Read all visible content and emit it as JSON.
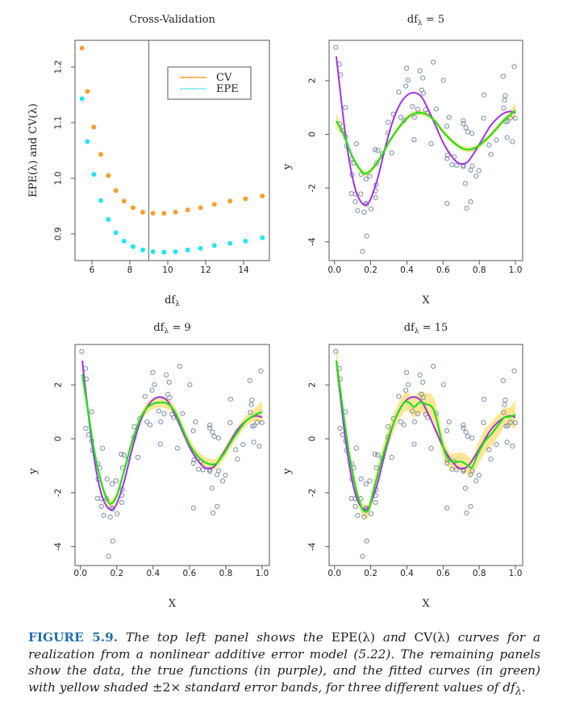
{
  "chart_data": [
    {
      "type": "scatter",
      "title": "Cross-Validation",
      "xlabel": "df_λ",
      "ylabel": "EPE(λ) and CV(λ)",
      "xlim": [
        5.11,
        15.36
      ],
      "ylim": [
        0.852,
        1.248
      ],
      "xticks": [
        6,
        8,
        10,
        12,
        14
      ],
      "yticks": [
        0.9,
        1.0,
        1.1,
        1.2
      ],
      "ytick_labels": [
        "0.9",
        "1.0",
        "1.1",
        "1.2"
      ],
      "vline": 9,
      "legend": {
        "placement": "top-right",
        "entries": [
          "CV",
          "EPE"
        ]
      },
      "x": [
        5.48,
        5.76,
        6.1,
        6.47,
        6.87,
        7.26,
        7.7,
        8.17,
        8.68,
        9.22,
        9.8,
        10.41,
        11.05,
        11.73,
        12.46,
        13.28,
        14.1,
        14.99
      ],
      "series": [
        {
          "name": "CV",
          "color": "#f5a030",
          "values": [
            1.234,
            1.156,
            1.092,
            1.043,
            1.005,
            0.978,
            0.959,
            0.947,
            0.939,
            0.937,
            0.937,
            0.939,
            0.943,
            0.947,
            0.953,
            0.959,
            0.963,
            0.968
          ]
        },
        {
          "name": "EPE",
          "color": "#22e5ef",
          "values": [
            1.143,
            1.066,
            1.007,
            0.96,
            0.926,
            0.902,
            0.887,
            0.877,
            0.871,
            0.868,
            0.867,
            0.868,
            0.871,
            0.874,
            0.879,
            0.883,
            0.887,
            0.893
          ]
        }
      ]
    },
    {
      "type": "scatter",
      "title_prefix": "df",
      "title_sub": "λ",
      "title_value": "= 5",
      "xlabel": "X",
      "ylabel": "y",
      "xlim": [
        -0.03,
        1.04
      ],
      "ylim": [
        -4.7,
        3.5
      ],
      "xticks": [
        0.0,
        0.2,
        0.4,
        0.6,
        0.8,
        1.0
      ],
      "xtick_labels": [
        "0.0",
        "0.2",
        "0.4",
        "0.6",
        "0.8",
        "1.0"
      ],
      "yticks": [
        -4,
        -2,
        0,
        2
      ],
      "ytick_labels": [
        "-4",
        "-2",
        "0",
        "2"
      ],
      "fit": {
        "x": [
          0.01,
          0.05,
          0.1,
          0.15,
          0.18,
          0.22,
          0.26,
          0.3,
          0.35,
          0.4,
          0.44,
          0.48,
          0.52,
          0.56,
          0.6,
          0.65,
          0.7,
          0.74,
          0.78,
          0.82,
          0.86,
          0.9,
          0.94,
          0.97,
          1.0
        ],
        "y": [
          0.5,
          0.0,
          -0.85,
          -1.38,
          -1.45,
          -1.2,
          -0.8,
          -0.3,
          0.2,
          0.6,
          0.77,
          0.8,
          0.7,
          0.45,
          0.1,
          -0.25,
          -0.5,
          -0.57,
          -0.5,
          -0.3,
          -0.05,
          0.25,
          0.55,
          0.72,
          0.9
        ]
      },
      "band_halfwidth": [
        0.3,
        0.12,
        0.1,
        0.1,
        0.1,
        0.1,
        0.1,
        0.1,
        0.1,
        0.1,
        0.1,
        0.1,
        0.1,
        0.1,
        0.1,
        0.1,
        0.1,
        0.1,
        0.1,
        0.1,
        0.1,
        0.1,
        0.12,
        0.16,
        0.3
      ]
    },
    {
      "type": "scatter",
      "title_prefix": "df",
      "title_sub": "λ",
      "title_value": "= 9",
      "xlabel": "X",
      "ylabel": "y",
      "xlim": [
        -0.03,
        1.04
      ],
      "ylim": [
        -4.7,
        3.5
      ],
      "xticks": [
        0.0,
        0.2,
        0.4,
        0.6,
        0.8,
        1.0
      ],
      "xtick_labels": [
        "0.0",
        "0.2",
        "0.4",
        "0.6",
        "0.8",
        "1.0"
      ],
      "yticks": [
        -4,
        -2,
        0,
        2
      ],
      "ytick_labels": [
        "-4",
        "-2",
        "0",
        "2"
      ],
      "fit": {
        "x": [
          0.01,
          0.04,
          0.08,
          0.12,
          0.15,
          0.17,
          0.2,
          0.24,
          0.28,
          0.32,
          0.36,
          0.4,
          0.44,
          0.48,
          0.52,
          0.56,
          0.6,
          0.64,
          0.68,
          0.72,
          0.75,
          0.79,
          0.83,
          0.87,
          0.91,
          0.95,
          1.0
        ],
        "y": [
          2.4,
          1.1,
          -0.6,
          -1.75,
          -2.3,
          -2.4,
          -2.1,
          -1.2,
          -0.2,
          0.6,
          1.1,
          1.3,
          1.35,
          1.3,
          1.0,
          0.4,
          -0.2,
          -0.6,
          -0.85,
          -0.95,
          -0.9,
          -0.55,
          -0.1,
          0.3,
          0.65,
          0.85,
          1.0
        ]
      },
      "band_halfwidth": [
        0.35,
        0.2,
        0.15,
        0.15,
        0.15,
        0.15,
        0.15,
        0.15,
        0.15,
        0.15,
        0.2,
        0.2,
        0.2,
        0.2,
        0.2,
        0.2,
        0.2,
        0.2,
        0.2,
        0.2,
        0.2,
        0.2,
        0.2,
        0.2,
        0.2,
        0.22,
        0.4
      ]
    },
    {
      "type": "scatter",
      "title_prefix": "df",
      "title_sub": "λ",
      "title_value": "= 15",
      "xlabel": "X",
      "ylabel": "y",
      "xlim": [
        -0.03,
        1.04
      ],
      "ylim": [
        -4.7,
        3.5
      ],
      "xticks": [
        0.0,
        0.2,
        0.4,
        0.6,
        0.8,
        1.0
      ],
      "xtick_labels": [
        "0.0",
        "0.2",
        "0.4",
        "0.6",
        "0.8",
        "1.0"
      ],
      "yticks": [
        -4,
        -2,
        0,
        2
      ],
      "ytick_labels": [
        "-4",
        "-2",
        "0",
        "2"
      ],
      "fit": {
        "x": [
          0.01,
          0.04,
          0.08,
          0.12,
          0.15,
          0.17,
          0.19,
          0.22,
          0.26,
          0.3,
          0.34,
          0.38,
          0.4,
          0.42,
          0.44,
          0.47,
          0.5,
          0.55,
          0.6,
          0.63,
          0.66,
          0.7,
          0.73,
          0.76,
          0.79,
          0.83,
          0.87,
          0.91,
          0.94,
          0.97,
          1.0
        ],
        "y": [
          2.9,
          1.4,
          -0.5,
          -1.9,
          -2.55,
          -2.7,
          -2.6,
          -1.8,
          -0.8,
          0.1,
          0.8,
          1.3,
          1.38,
          1.3,
          1.18,
          1.35,
          1.3,
          1.05,
          -0.3,
          -0.75,
          -0.85,
          -0.85,
          -0.95,
          -1.05,
          -0.6,
          -0.1,
          0.2,
          0.55,
          0.8,
          0.82,
          0.9
        ]
      },
      "band_halfwidth": [
        0.6,
        0.3,
        0.25,
        0.25,
        0.25,
        0.25,
        0.25,
        0.3,
        0.35,
        0.35,
        0.35,
        0.35,
        0.35,
        0.35,
        0.4,
        0.4,
        0.4,
        0.45,
        0.4,
        0.3,
        0.3,
        0.35,
        0.35,
        0.35,
        0.4,
        0.45,
        0.45,
        0.4,
        0.35,
        0.35,
        0.55
      ]
    }
  ],
  "true_function": {
    "color": "#a033e6",
    "x": [
      0.01,
      0.03,
      0.06,
      0.09,
      0.12,
      0.15,
      0.175,
      0.2,
      0.24,
      0.28,
      0.32,
      0.36,
      0.4,
      0.44,
      0.48,
      0.52,
      0.56,
      0.6,
      0.64,
      0.68,
      0.71,
      0.74,
      0.78,
      0.82,
      0.86,
      0.9,
      0.94,
      0.97,
      1.0
    ],
    "y": [
      2.9,
      1.7,
      0.0,
      -1.3,
      -2.15,
      -2.55,
      -2.62,
      -2.4,
      -1.6,
      -0.5,
      0.45,
      1.1,
      1.45,
      1.55,
      1.4,
      0.9,
      0.3,
      -0.3,
      -0.75,
      -1.05,
      -1.1,
      -1.0,
      -0.6,
      -0.15,
      0.3,
      0.6,
      0.8,
      0.85,
      0.8
    ]
  },
  "scatter_points": {
    "color": "#7b8ca1",
    "x": [
      0.007,
      0.027,
      0.032,
      0.061,
      0.03,
      0.044,
      0.062,
      0.066,
      0.121,
      0.096,
      0.106,
      0.097,
      0.147,
      0.094,
      0.115,
      0.145,
      0.115,
      0.128,
      0.164,
      0.174,
      0.195,
      0.173,
      0.177,
      0.202,
      0.178,
      0.155,
      0.224,
      0.239,
      0.232,
      0.264,
      0.23,
      0.227,
      0.227,
      0.295,
      0.296,
      0.316,
      0.326,
      0.355,
      0.366,
      0.383,
      0.394,
      0.398,
      0.407,
      0.431,
      0.44,
      0.442,
      0.46,
      0.472,
      0.488,
      0.481,
      0.491,
      0.504,
      0.513,
      0.534,
      0.546,
      0.562,
      0.602,
      0.621,
      0.625,
      0.622,
      0.622,
      0.633,
      0.65,
      0.674,
      0.662,
      0.712,
      0.712,
      0.712,
      0.726,
      0.736,
      0.76,
      0.712,
      0.761,
      0.752,
      0.723,
      0.73,
      0.752,
      0.783,
      0.798,
      0.824,
      0.827,
      0.854,
      0.864,
      0.895,
      0.932,
      0.935,
      0.94,
      0.944,
      0.948,
      0.957,
      0.954,
      0.972,
      0.984,
      0.993,
      0.999
    ],
    "y": [
      3.24,
      2.61,
      2.22,
      1.0,
      0.39,
      0.15,
      -0.08,
      -0.43,
      -0.35,
      -0.92,
      -1.07,
      -1.5,
      -1.49,
      -2.21,
      -2.22,
      -2.22,
      -2.51,
      -2.84,
      -2.9,
      -1.67,
      -1.56,
      -2.57,
      -2.61,
      -2.78,
      -3.79,
      -4.36,
      -0.57,
      -0.6,
      -1.07,
      -0.72,
      -1.88,
      -2.1,
      -2.36,
      0.06,
      0.45,
      -0.69,
      0.75,
      1.57,
      0.63,
      0.52,
      1.8,
      2.46,
      2.01,
      1.03,
      -0.2,
      0.63,
      0.93,
      2.37,
      2.1,
      1.65,
      1.53,
      0.91,
      0.79,
      -0.35,
      2.69,
      0.94,
      2.01,
      0.3,
      -0.78,
      -0.9,
      -2.57,
      0.63,
      -1.13,
      -1.15,
      -0.84,
      0.51,
      0.4,
      -1.15,
      0.25,
      0.09,
      0.03,
      -1.2,
      -1.18,
      -1.33,
      -1.83,
      -2.75,
      -2.51,
      -1.56,
      -1.35,
      0.6,
      1.47,
      -0.4,
      -0.75,
      -0.21,
      2.16,
      0.98,
      1.27,
      1.44,
      0.47,
      0.49,
      -0.12,
      0.61,
      -0.27,
      2.52,
      0.6
    ]
  },
  "colors": {
    "fit": "#1fe01f",
    "band": "#ffe38a",
    "axis": "#555555",
    "vline": "#777777"
  },
  "caption": {
    "label": "FIGURE 5.9.",
    "text_1": " The top left panel shows the ",
    "epe": "EPE(λ)",
    "and": " and ",
    "cv": "CV(λ)",
    "text_2": " curves for a realization from a nonlinear additive error model (5.22). The remaining panels show the data, the true functions (in purple), and the fitted curves (in green) with yellow shaded ",
    "pm": "±2×",
    "text_3": " standard error bands, for three different values of df",
    "sub": "λ",
    "end": "."
  }
}
